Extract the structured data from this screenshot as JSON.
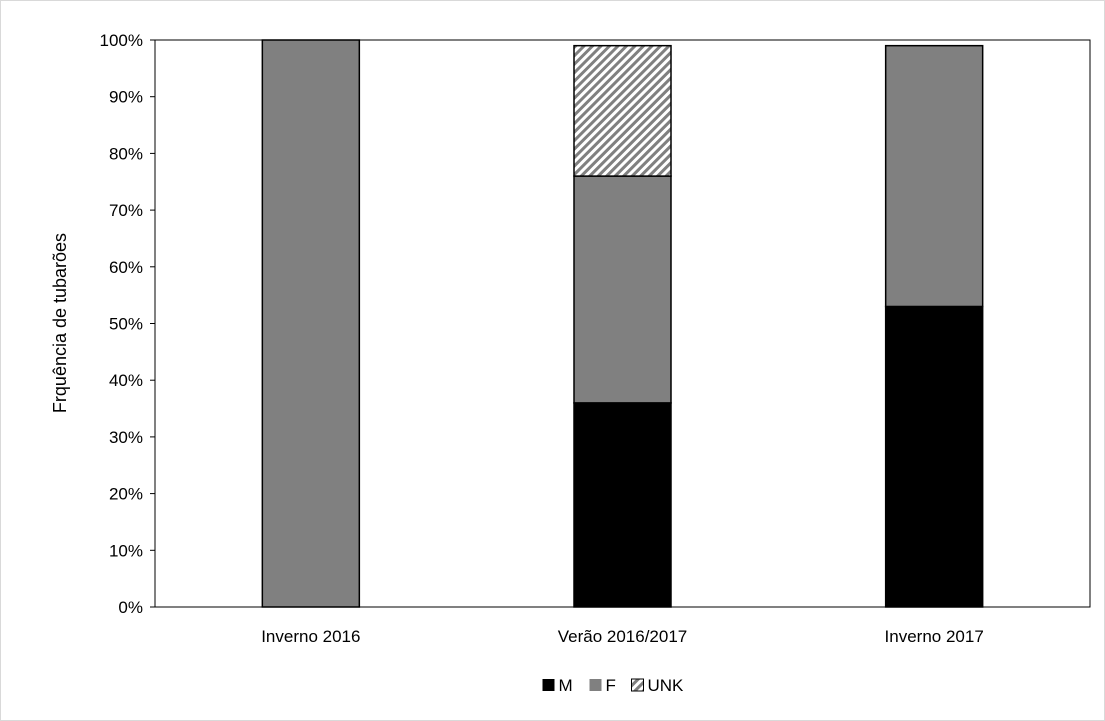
{
  "chart_data": {
    "type": "bar",
    "stacked": true,
    "title": "",
    "xlabel": "",
    "ylabel": "Frquência de tubarões",
    "ylim": [
      0,
      100
    ],
    "y_ticks": [
      "0%",
      "10%",
      "20%",
      "30%",
      "40%",
      "50%",
      "60%",
      "70%",
      "80%",
      "90%",
      "100%"
    ],
    "categories": [
      "Inverno 2016",
      "Verão 2016/2017",
      "Inverno 2017"
    ],
    "series": [
      {
        "name": "M",
        "values": [
          0,
          36,
          53
        ],
        "color": "#000000",
        "pattern": "solid"
      },
      {
        "name": "F",
        "values": [
          100,
          40,
          46
        ],
        "color": "#808080",
        "pattern": "solid"
      },
      {
        "name": "UNK",
        "values": [
          0,
          23,
          0
        ],
        "color": "#808080",
        "pattern": "diagonal-hatch"
      }
    ],
    "grid": false,
    "legend_position": "bottom"
  }
}
